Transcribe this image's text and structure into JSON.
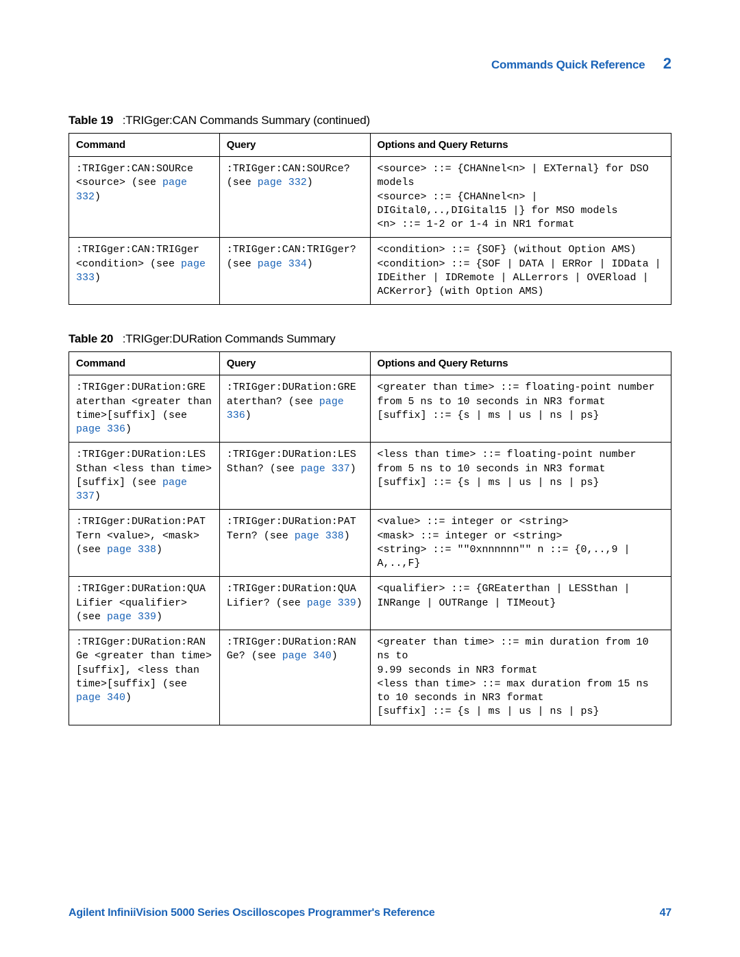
{
  "colors": {
    "link": "#1a63b7",
    "text": "#000000",
    "border": "#000000",
    "background": "#ffffff"
  },
  "header": {
    "section_title": "Commands Quick Reference",
    "section_number": "2"
  },
  "table19": {
    "caption_label": "Table 19",
    "caption_text": ":TRIGger:CAN Commands Summary (continued)",
    "headers": {
      "c1": "Command",
      "c2": "Query",
      "c3": "Options and Query Returns"
    },
    "rows": [
      {
        "cmd_pre": ":TRIGger:CAN:SOURce <source> (see ",
        "cmd_link": "page 332",
        "cmd_post": ")",
        "qry_pre": ":TRIGger:CAN:SOURce? (see ",
        "qry_link": "page 332",
        "qry_post": ")",
        "opt": "<source> ::= {CHANnel<n> | EXTernal} for DSO models\n<source> ::= {CHANnel<n> | DIGital0,..,DIGital15 |} for MSO models\n<n> ::= 1-2 or 1-4 in NR1 format"
      },
      {
        "cmd_pre": ":TRIGger:CAN:TRIGger <condition> (see ",
        "cmd_link": "page 333",
        "cmd_post": ")",
        "qry_pre": ":TRIGger:CAN:TRIGger? (see ",
        "qry_link": "page 334",
        "qry_post": ")",
        "opt": "<condition> ::= {SOF} (without Option AMS)\n<condition> ::= {SOF | DATA | ERRor | IDData | IDEither | IDRemote | ALLerrors | OVERload | ACKerror} (with Option AMS)"
      }
    ]
  },
  "table20": {
    "caption_label": "Table 20",
    "caption_text": ":TRIGger:DURation Commands Summary",
    "headers": {
      "c1": "Command",
      "c2": "Query",
      "c3": "Options and Query Returns"
    },
    "rows": [
      {
        "cmd_pre": ":TRIGger:DURation:GRE aterthan <greater than time>[suffix] (see ",
        "cmd_link": "page 336",
        "cmd_post": ")",
        "qry_pre": ":TRIGger:DURation:GRE aterthan? (see ",
        "qry_link": "page 336",
        "qry_post": ")",
        "opt": "<greater than time> ::= floating-point number from 5 ns to 10 seconds in NR3 format\n[suffix] ::= {s | ms | us | ns | ps}"
      },
      {
        "cmd_pre": ":TRIGger:DURation:LES Sthan <less than time>[suffix] (see ",
        "cmd_link": "page 337",
        "cmd_post": ")",
        "qry_pre": ":TRIGger:DURation:LES Sthan? (see ",
        "qry_link": "page 337",
        "qry_post": ")",
        "opt": "<less than time> ::= floating-point number from 5 ns to 10 seconds in NR3 format\n[suffix] ::= {s | ms | us | ns | ps}"
      },
      {
        "cmd_pre": ":TRIGger:DURation:PAT Tern <value>, <mask> (see ",
        "cmd_link": "page 338",
        "cmd_post": ")",
        "qry_pre": ":TRIGger:DURation:PAT Tern? (see ",
        "qry_link": "page 338",
        "qry_post": ")",
        "opt": "<value> ::= integer or <string>\n<mask> ::= integer or <string>\n<string> ::= \"\"0xnnnnnn\"\" n ::= {0,..,9 | A,..,F}"
      },
      {
        "cmd_pre": ":TRIGger:DURation:QUA Lifier <qualifier> (see ",
        "cmd_link": "page 339",
        "cmd_post": ")",
        "qry_pre": ":TRIGger:DURation:QUA Lifier? (see ",
        "qry_link": "page 339",
        "qry_post": ")",
        "opt": "<qualifier> ::= {GREaterthan | LESSthan | INRange | OUTRange | TIMeout}"
      },
      {
        "cmd_pre": ":TRIGger:DURation:RAN Ge <greater than time>[suffix], <less than time>[suffix] (see ",
        "cmd_link": "page 340",
        "cmd_post": ")",
        "qry_pre": ":TRIGger:DURation:RAN Ge? (see ",
        "qry_link": "page 340",
        "qry_post": ")",
        "opt": "<greater than time> ::= min duration from 10 ns to\n9.99 seconds in NR3 format\n<less than time> ::= max duration from 15 ns to 10 seconds in NR3 format\n[suffix] ::= {s | ms | us | ns | ps}"
      }
    ]
  },
  "footer": {
    "title": "Agilent InfiniiVision 5000 Series Oscilloscopes Programmer's Reference",
    "page": "47"
  }
}
